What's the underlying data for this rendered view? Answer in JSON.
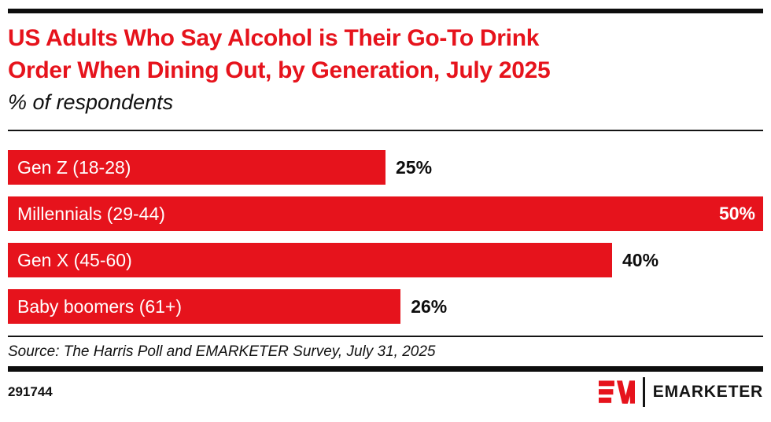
{
  "colors": {
    "accent_red": "#E6131C",
    "ink": "#0d0d0d",
    "background": "#ffffff"
  },
  "header": {
    "title": "US Adults Who Say Alcohol is Their Go-To Drink Order When Dining Out, by Generation, July 2025",
    "title_lines": [
      "US Adults Who Say Alcohol is Their Go-To Drink",
      "Order When Dining Out, by Generation, July 2025"
    ],
    "subtitle": "% of respondents"
  },
  "chart_data": {
    "type": "bar",
    "orientation": "horizontal",
    "title": "US Adults Who Say Alcohol is Their Go-To Drink Order When Dining Out, by Generation, July 2025",
    "subtitle": "% of respondents",
    "categories": [
      "Gen Z (18-28)",
      "Millennials (29-44)",
      "Gen X (45-60)",
      "Baby boomers (61+)"
    ],
    "values": [
      25,
      50,
      40,
      26
    ],
    "value_labels": [
      "25%",
      "50%",
      "40%",
      "26%"
    ],
    "value_label_position": [
      "outside",
      "inside",
      "outside",
      "outside"
    ],
    "xmax": 50,
    "bar_color": "#E6131C",
    "grid": false,
    "legend": false
  },
  "source": {
    "text": "Source: The Harris Poll and EMARKETER Survey, July 31, 2025"
  },
  "footer": {
    "chart_id": "291744",
    "brand": "EMARKETER"
  }
}
